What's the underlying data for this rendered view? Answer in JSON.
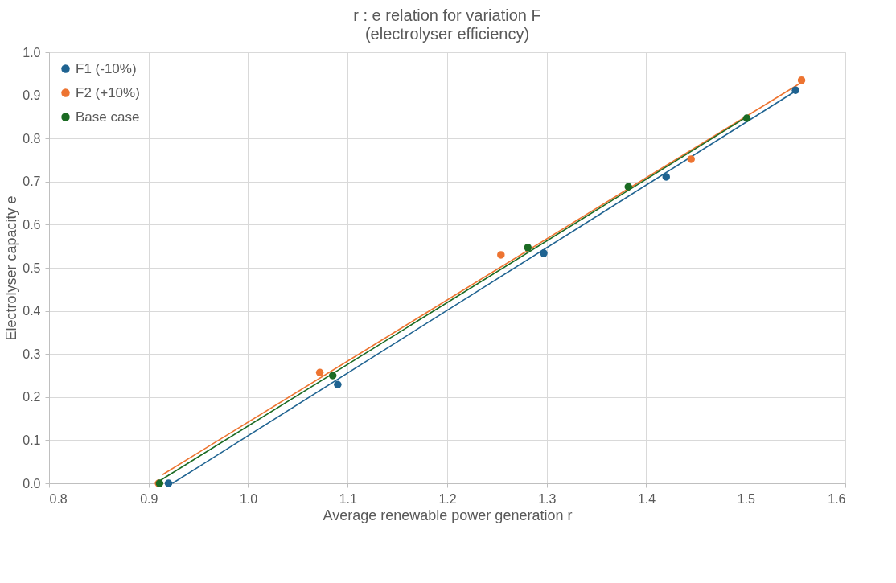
{
  "chart_data": {
    "type": "scatter",
    "title": "r : e relation for variation F",
    "subtitle": "(electrolyser efficiency)",
    "xlabel": "Average renewable power generation r",
    "ylabel": "Electrolyser capacity e",
    "xlim": [
      0.8,
      1.6
    ],
    "xticks": [
      {
        "value": 0.8,
        "label": "0.8"
      },
      {
        "value": 0.9,
        "label": "0.9"
      },
      {
        "value": 1.0,
        "label": "1.0"
      },
      {
        "value": 1.1,
        "label": "1.1"
      },
      {
        "value": 1.2,
        "label": "1.2"
      },
      {
        "value": 1.3,
        "label": "1.3"
      },
      {
        "value": 1.4,
        "label": "1.4"
      },
      {
        "value": 1.5,
        "label": "1.5"
      },
      {
        "value": 1.6,
        "label": "1.6"
      }
    ],
    "ylim": [
      0,
      1
    ],
    "yticks": [
      {
        "value": 0,
        "label": "0.0"
      },
      {
        "value": 0.1,
        "label": "0.1"
      },
      {
        "value": 0.2,
        "label": "0.2"
      },
      {
        "value": 0.3,
        "label": "0.3"
      },
      {
        "value": 0.4,
        "label": "0.4"
      },
      {
        "value": 0.5,
        "label": "0.5"
      },
      {
        "value": 0.6,
        "label": "0.6"
      },
      {
        "value": 0.7,
        "label": "0.7"
      },
      {
        "value": 0.8,
        "label": "0.8"
      },
      {
        "value": 0.9,
        "label": "0.9"
      },
      {
        "value": 1.0,
        "label": "1.0"
      }
    ],
    "grid": true,
    "legend": "top left",
    "marker": "circle",
    "series": [
      {
        "name": "F1 (-10%)",
        "color": "#1f6391",
        "x": [
          0.92,
          1.09,
          1.297,
          1.42,
          1.55
        ],
        "values": [
          0,
          0.229,
          0.534,
          0.711,
          0.912
        ]
      },
      {
        "name": "F2 (+10%)",
        "color": "#ed7431",
        "x": [
          0.91,
          1.072,
          1.254,
          1.445,
          1.556
        ],
        "values": [
          0,
          0.257,
          0.53,
          0.752,
          0.935
        ]
      },
      {
        "name": "Base case",
        "color": "#1b6b23",
        "x": [
          0.911,
          1.085,
          1.281,
          1.382,
          1.501
        ],
        "values": [
          0,
          0.25,
          0.547,
          0.688,
          0.847
        ]
      },
      {
        "type": "line",
        "color": "#1f6391",
        "x": [
          0.924,
          1.55
        ],
        "values": [
          0,
          0.91
        ],
        "line_style": "solid",
        "marker": "none"
      },
      {
        "type": "line",
        "color": "#ed7431",
        "x": [
          0.914,
          1.556
        ],
        "values": [
          0.02,
          0.93
        ],
        "line_style": "solid",
        "marker": "none"
      },
      {
        "type": "line",
        "color": "#1b6b23",
        "x": [
          0.912,
          1.501
        ],
        "values": [
          0.007,
          0.85
        ],
        "line_style": "solid",
        "marker": "none"
      }
    ]
  }
}
